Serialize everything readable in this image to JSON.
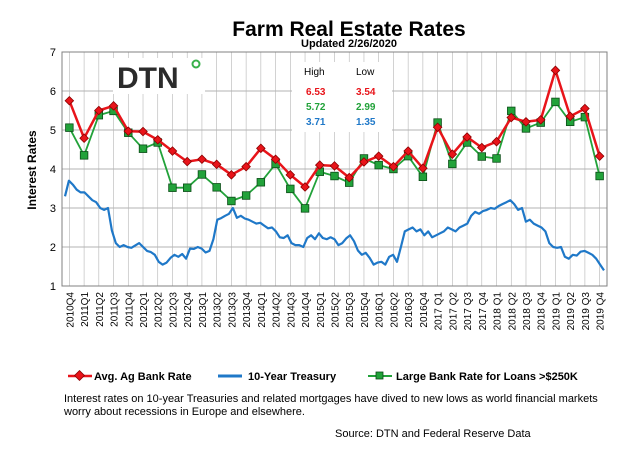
{
  "chart_data": {
    "type": "line",
    "title": "Farm Real Estate Rates",
    "subtitle": "Updated  2/26/2020",
    "ylabel": "Interest Rates",
    "xlabel": "",
    "ylim": [
      1,
      7
    ],
    "yticks": [
      1,
      2,
      3,
      4,
      5,
      6,
      7
    ],
    "grid": true,
    "legend_position": "bottom",
    "logo_text": "DTN",
    "categories": [
      "2010Q4",
      "2011Q1",
      "2011Q2",
      "2011Q3",
      "2011Q4",
      "2012Q1",
      "2012Q2",
      "2012Q3",
      "2012Q4",
      "2013Q1",
      "2013Q2",
      "2013Q3",
      "2013Q4",
      "2014Q1",
      "2014Q2",
      "2014Q3",
      "2014Q4",
      "2015Q1",
      "2015Q2",
      "2015Q3",
      "2015Q4",
      "2016Q1",
      "2016Q2",
      "2016Q3",
      "2016Q4",
      "2017 Q1",
      "2017 Q2",
      "2017 Q3",
      "2017 Q4",
      "2018 Q1",
      "2018 Q2",
      "2018 Q3",
      "2018 Q4",
      "2019 Q1",
      "2019 Q2",
      "2019 Q3",
      "2019 Q4"
    ],
    "series": [
      {
        "name": "Avg. Ag Bank Rate",
        "color": "#e8141a",
        "marker": "diamond",
        "values": [
          5.75,
          4.79,
          5.5,
          5.62,
          4.97,
          4.96,
          4.75,
          4.46,
          4.19,
          4.25,
          4.12,
          3.85,
          4.06,
          4.53,
          4.25,
          3.85,
          3.54,
          4.1,
          4.08,
          3.78,
          4.18,
          4.33,
          4.06,
          4.46,
          4.02,
          5.07,
          4.38,
          4.82,
          4.55,
          4.7,
          5.32,
          5.21,
          5.26,
          6.53,
          5.35,
          5.55,
          4.33
        ]
      },
      {
        "name": "10-Year Treasury",
        "color": "#1f78c8",
        "marker": "none",
        "values": [
          3.3,
          3.47,
          3.2,
          2.42,
          2.0,
          2.04,
          1.87,
          1.62,
          1.72,
          1.96,
          1.86,
          2.74,
          2.75,
          2.73,
          2.6,
          2.48,
          2.23,
          2.05,
          2.23,
          2.23,
          2.22,
          1.91,
          1.55,
          1.62,
          2.4,
          2.45,
          2.3,
          2.35,
          2.4,
          2.8,
          2.92,
          2.98,
          3.1,
          2.65,
          2.5,
          1.98,
          1.88
        ]
      },
      {
        "name": "Large Bank Rate for Loans >$250K",
        "color": "#22a23a",
        "marker": "square",
        "values": [
          5.06,
          4.35,
          5.38,
          5.49,
          4.93,
          4.52,
          4.68,
          3.52,
          3.52,
          3.86,
          3.53,
          3.18,
          3.32,
          3.66,
          4.13,
          3.49,
          2.99,
          3.93,
          3.82,
          3.65,
          4.27,
          4.1,
          4.0,
          4.33,
          3.8,
          5.19,
          4.13,
          4.68,
          4.32,
          4.27,
          5.49,
          5.04,
          5.19,
          5.72,
          5.21,
          5.33,
          3.82
        ]
      }
    ],
    "treasury_detail": [
      3.3,
      3.7,
      3.6,
      3.47,
      3.4,
      3.4,
      3.3,
      3.2,
      3.15,
      3.0,
      2.95,
      3.0,
      2.42,
      2.1,
      2.0,
      2.05,
      2.0,
      1.98,
      2.04,
      2.1,
      2.0,
      1.9,
      1.87,
      1.8,
      1.62,
      1.55,
      1.6,
      1.72,
      1.8,
      1.75,
      1.82,
      1.7,
      1.96,
      1.95,
      2.0,
      1.96,
      1.86,
      1.9,
      2.2,
      2.7,
      2.74,
      2.8,
      2.85,
      3.0,
      2.75,
      2.8,
      2.73,
      2.7,
      2.65,
      2.6,
      2.62,
      2.55,
      2.48,
      2.5,
      2.4,
      2.25,
      2.23,
      2.3,
      2.1,
      2.05,
      2.05,
      2.0,
      2.23,
      2.3,
      2.2,
      2.35,
      2.23,
      2.2,
      2.25,
      2.2,
      2.05,
      2.1,
      2.22,
      2.3,
      2.15,
      1.91,
      1.8,
      1.85,
      1.72,
      1.55,
      1.6,
      1.62,
      1.55,
      1.75,
      1.8,
      1.62,
      2.0,
      2.4,
      2.45,
      2.5,
      2.4,
      2.45,
      2.3,
      2.4,
      2.25,
      2.3,
      2.35,
      2.4,
      2.5,
      2.45,
      2.4,
      2.5,
      2.55,
      2.6,
      2.8,
      2.9,
      2.85,
      2.92,
      2.95,
      3.0,
      2.98,
      3.05,
      3.1,
      3.15,
      3.2,
      3.1,
      2.95,
      3.0,
      2.65,
      2.7,
      2.6,
      2.55,
      2.5,
      2.4,
      2.1,
      2.0,
      1.98,
      2.0,
      1.75,
      1.7,
      1.8,
      1.78,
      1.88,
      1.9,
      1.85,
      1.8,
      1.7,
      1.55,
      1.4
    ],
    "stats_table": {
      "headers": [
        "High",
        "Low"
      ],
      "rows": [
        {
          "high": "6.53",
          "low": "3.54",
          "color": "#e8141a"
        },
        {
          "high": "5.72",
          "low": "2.99",
          "color": "#22a23a"
        },
        {
          "high": "3.71",
          "low": "1.35",
          "color": "#1f78c8"
        }
      ]
    }
  },
  "caption": "Interest rates on 10-year Treasuries and related mortgages have dived to new lows as world financial markets worry about recessions in Europe and elsewhere.",
  "source": "Source: DTN  and Federal Reserve Data"
}
